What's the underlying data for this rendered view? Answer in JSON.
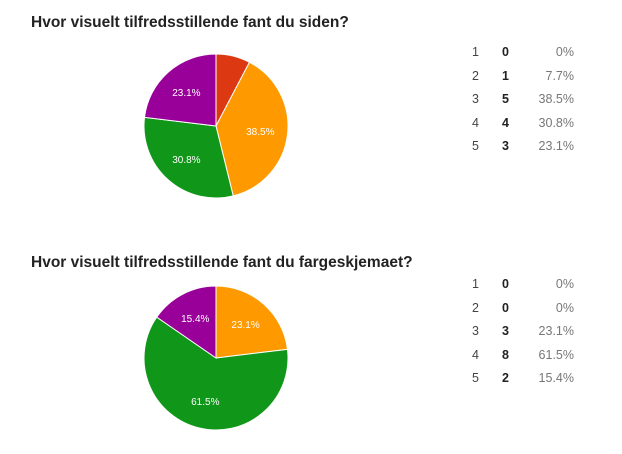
{
  "chart_data": [
    {
      "type": "pie",
      "title": "Hvor visuelt tilfredsstillende fant du siden?",
      "categories": [
        "1",
        "2",
        "3",
        "4",
        "5"
      ],
      "values": [
        0,
        1,
        5,
        4,
        3
      ],
      "percent_labels": [
        "0%",
        "7.7%",
        "38.5%",
        "30.8%",
        "23.1%"
      ],
      "colors": [
        "#3366cc",
        "#dc3912",
        "#ff9900",
        "#109618",
        "#990099"
      ]
    },
    {
      "type": "pie",
      "title": "Hvor visuelt tilfredsstillende fant du fargeskjemaet?",
      "categories": [
        "1",
        "2",
        "3",
        "4",
        "5"
      ],
      "values": [
        0,
        0,
        3,
        8,
        2
      ],
      "percent_labels": [
        "0%",
        "0%",
        "23.1%",
        "61.5%",
        "15.4%"
      ],
      "colors": [
        "#3366cc",
        "#dc3912",
        "#ff9900",
        "#109618",
        "#990099"
      ]
    }
  ]
}
